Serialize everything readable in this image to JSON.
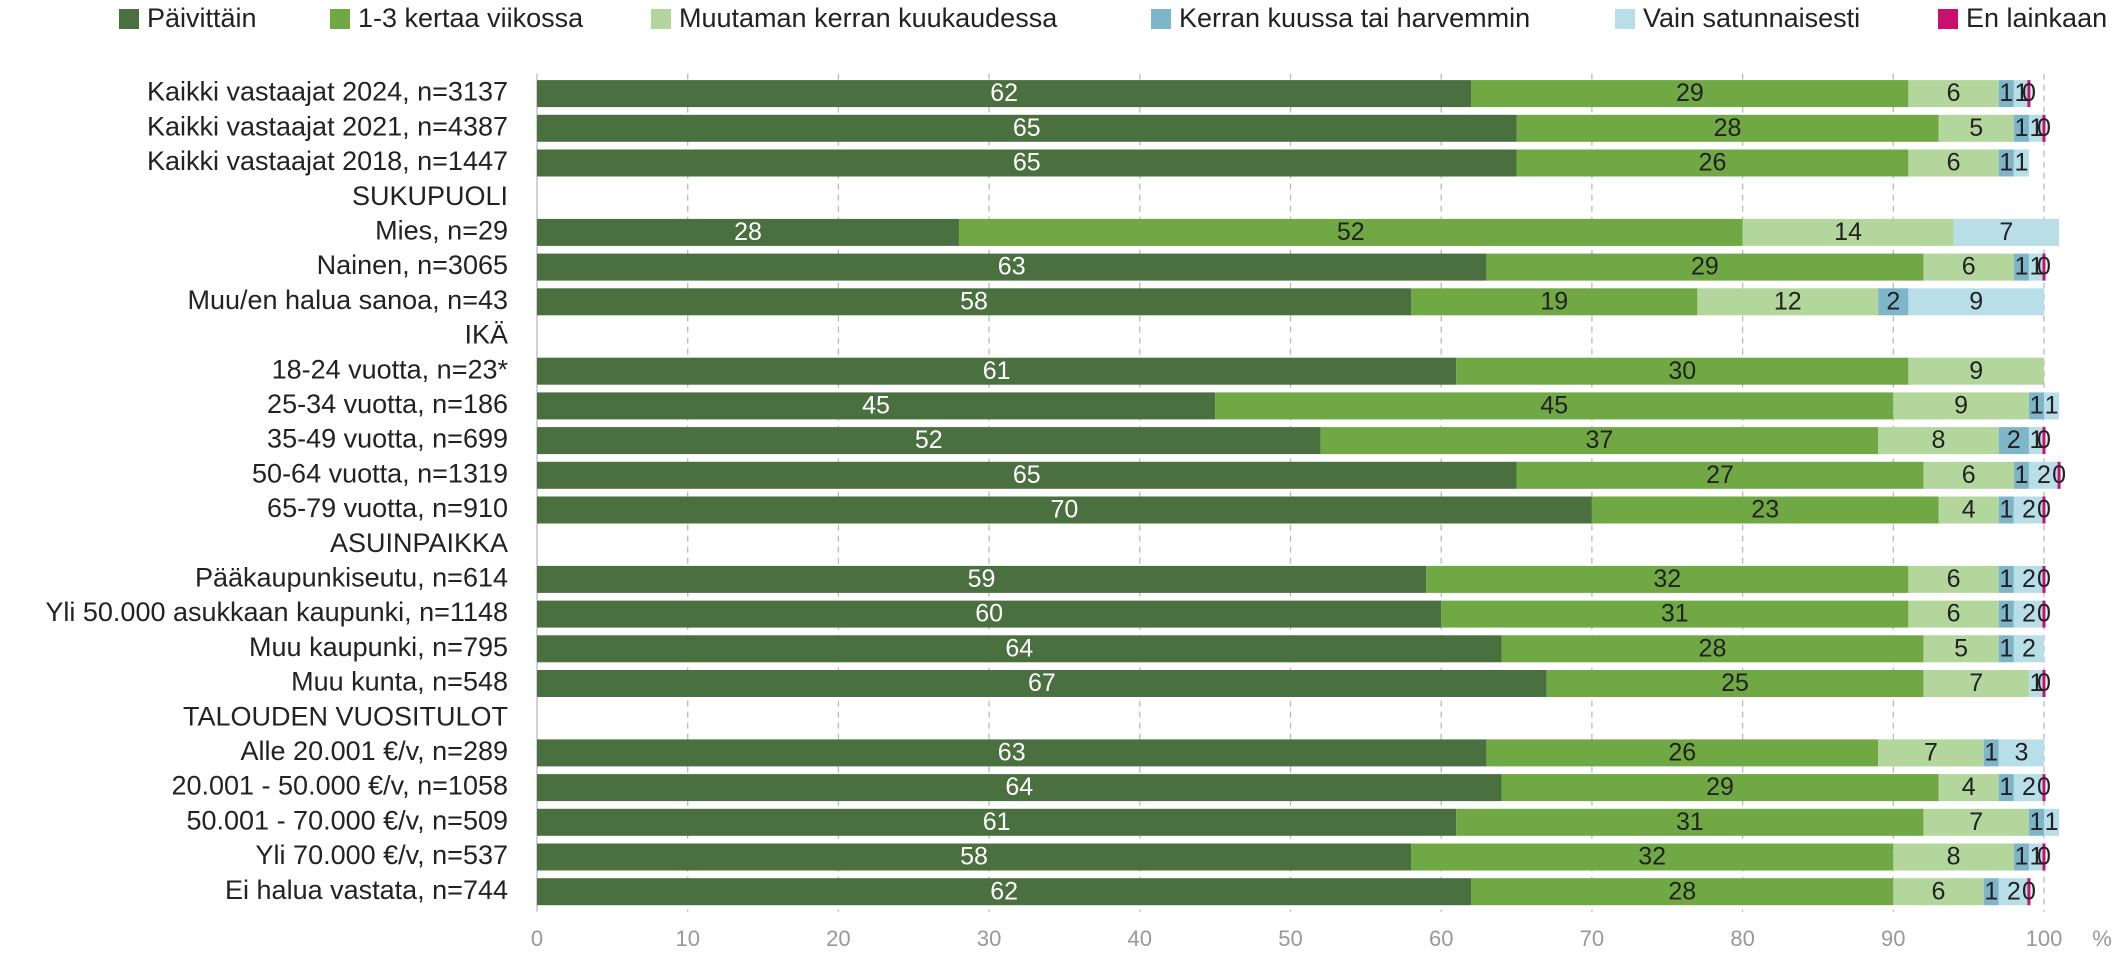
{
  "chart_data": {
    "type": "stacked_bar_horizontal",
    "categories": [
      "Kaikki vastaajat 2024, n=3137",
      "Kaikki vastaajat 2021, n=4387",
      "Kaikki vastaajat 2018, n=1447",
      "SUKUPUOLI",
      "Mies, n=29",
      "Nainen, n=3065",
      "Muu/en halua sanoa, n=43",
      "IKÄ",
      "18-24 vuotta, n=23*",
      "25-34 vuotta, n=186",
      "35-49 vuotta, n=699",
      "50-64 vuotta, n=1319",
      "65-79 vuotta, n=910",
      "ASUINPAIKKA",
      "Pääkaupunkiseutu, n=614",
      "Yli 50.000 asukkaan kaupunki, n=1148",
      "Muu kaupunki, n=795",
      "Muu kunta, n=548",
      "TALOUDEN VUOSITULOT",
      "Alle 20.001 €/v, n=289",
      "20.001 - 50.000 €/v, n=1058",
      "50.001 - 70.000 €/v, n=509",
      "Yli 70.000 €/v, n=537",
      "Ei halua vastata, n=744"
    ],
    "series": [
      {
        "name": "Päivittäin",
        "color": "#4a7040",
        "values": [
          62,
          65,
          65,
          null,
          28,
          63,
          58,
          null,
          61,
          45,
          52,
          65,
          70,
          null,
          59,
          60,
          64,
          67,
          null,
          63,
          64,
          61,
          58,
          62
        ]
      },
      {
        "name": "1-3 kertaa viikossa",
        "color": "#70a844",
        "values": [
          29,
          28,
          26,
          null,
          52,
          29,
          19,
          null,
          30,
          45,
          37,
          27,
          23,
          null,
          32,
          31,
          28,
          25,
          null,
          26,
          29,
          31,
          32,
          28
        ]
      },
      {
        "name": "Muutaman kerran kuukaudessa",
        "color": "#b3d69c",
        "values": [
          6,
          5,
          6,
          null,
          14,
          6,
          12,
          null,
          9,
          9,
          8,
          6,
          4,
          null,
          6,
          6,
          5,
          7,
          null,
          7,
          4,
          7,
          8,
          6
        ]
      },
      {
        "name": "Kerran kuussa tai harvemmin",
        "color": "#7fb5c8",
        "values": [
          1,
          1,
          1,
          null,
          null,
          1,
          2,
          null,
          null,
          1,
          2,
          1,
          1,
          null,
          1,
          1,
          1,
          null,
          null,
          1,
          1,
          1,
          1,
          1
        ]
      },
      {
        "name": "Vain satunnaisesti",
        "color": "#b8dfe8",
        "values": [
          1,
          1,
          1,
          null,
          7,
          1,
          9,
          null,
          null,
          1,
          1,
          2,
          2,
          null,
          2,
          2,
          2,
          1,
          null,
          3,
          2,
          1,
          1,
          2
        ]
      },
      {
        "name": "En lainkaan",
        "color": "#c8106e",
        "values": [
          0,
          0,
          null,
          null,
          null,
          0,
          null,
          null,
          null,
          null,
          0,
          0,
          0,
          null,
          0,
          0,
          null,
          0,
          null,
          null,
          0,
          null,
          0,
          0
        ]
      }
    ],
    "xlabel": "%",
    "xlim": [
      0,
      100
    ],
    "xticks": [
      0,
      10,
      20,
      30,
      40,
      50,
      60,
      70,
      80,
      90,
      100
    ],
    "grid": true,
    "legend": "top"
  }
}
